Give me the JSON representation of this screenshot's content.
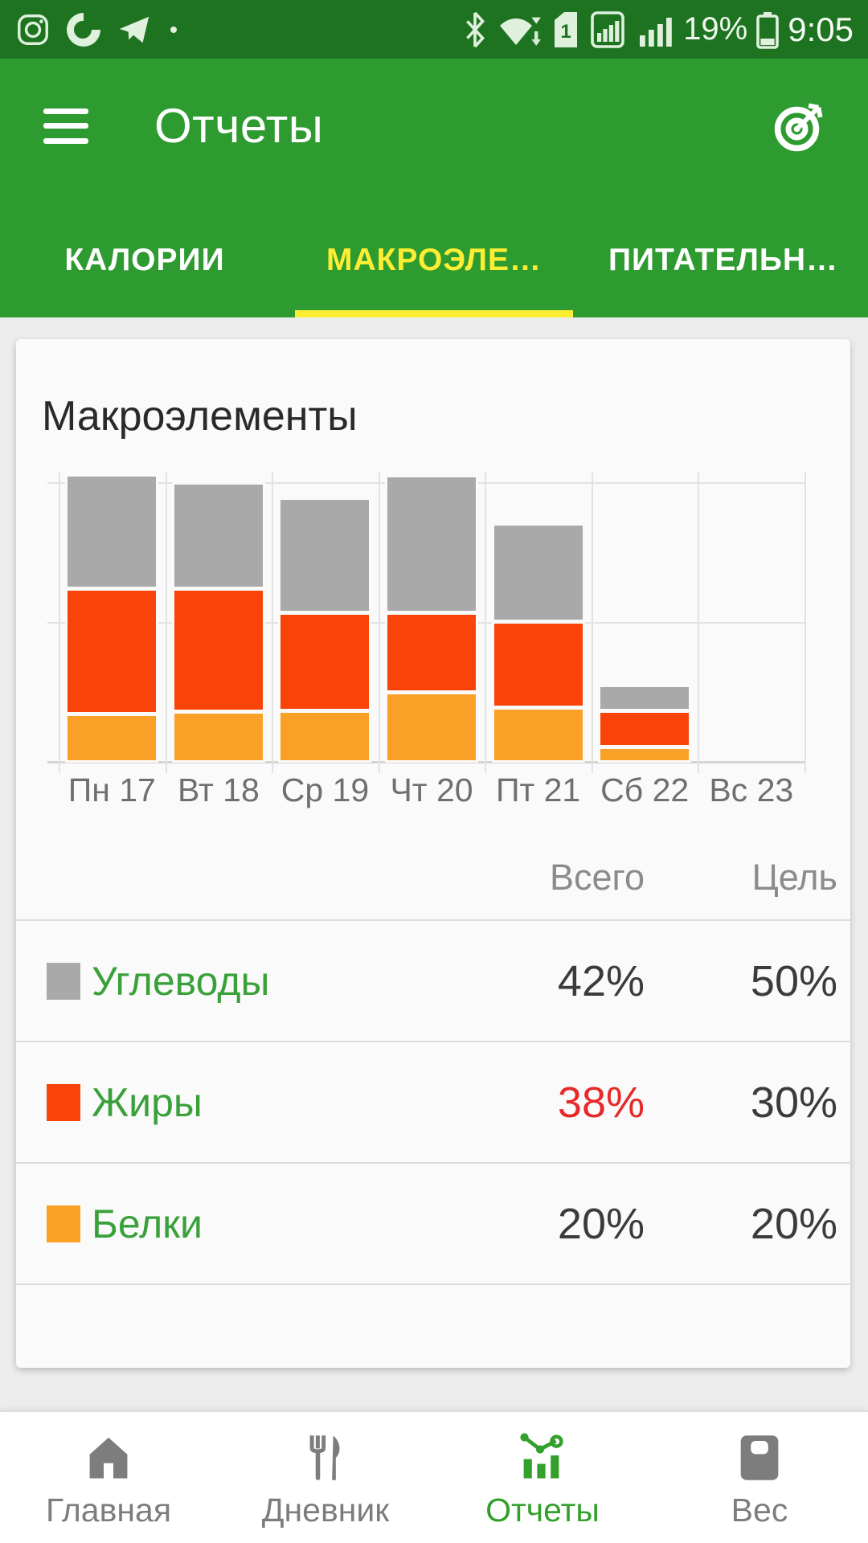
{
  "status_bar": {
    "time": "9:05",
    "battery_percent": "19%",
    "sim_slot": "1"
  },
  "app_bar": {
    "title": "Отчеты"
  },
  "tabs": {
    "items": [
      {
        "label": "КАЛОРИИ"
      },
      {
        "label": "МАКРОЭЛЕ…"
      },
      {
        "label": "ПИТАТЕЛЬН…"
      }
    ],
    "active_index": 1
  },
  "chart_data": {
    "type": "bar",
    "stacked": true,
    "title": "Макроэлементы",
    "xlabel": "",
    "ylabel": "",
    "ylim": [
      0,
      100
    ],
    "grid": true,
    "legend_position": "table-below",
    "categories": [
      "Пн 17",
      "Вт 18",
      "Ср 19",
      "Чт 20",
      "Пт 21",
      "Сб 22",
      "Вс 23"
    ],
    "series": [
      {
        "name": "Белки",
        "color": "#fba026",
        "values": [
          15.8,
          16.7,
          17.0,
          23.6,
          18.1,
          4.0,
          0
        ]
      },
      {
        "name": "Жиры",
        "color": "#fa4308",
        "values": [
          43.4,
          42.5,
          33.6,
          27.0,
          29.3,
          11.5,
          0
        ]
      },
      {
        "name": "Углеводы",
        "color": "#a9a9a9",
        "values": [
          39.4,
          36.5,
          39.7,
          47.7,
          33.6,
          7.8,
          0
        ]
      }
    ]
  },
  "table": {
    "header_total": "Всего",
    "header_goal": "Цель",
    "rows": [
      {
        "label": "Углеводы",
        "color": "#a9a9a9",
        "total": "42%",
        "goal": "50%",
        "total_color": "#3b3b3b"
      },
      {
        "label": "Жиры",
        "color": "#fa4308",
        "total": "38%",
        "goal": "30%",
        "total_color": "#e62a2a"
      },
      {
        "label": "Белки",
        "color": "#fba026",
        "total": "20%",
        "goal": "20%",
        "total_color": "#3b3b3b"
      }
    ]
  },
  "bottom_nav": {
    "items": [
      {
        "label": "Главная"
      },
      {
        "label": "Дневник"
      },
      {
        "label": "Отчеты"
      },
      {
        "label": "Вес"
      }
    ],
    "active_index": 2
  },
  "colors": {
    "statusbar_green": "#1d7320",
    "appbar_green": "#2e9b30",
    "tab_yellow": "#fdee33",
    "bg_gray": "#ededed",
    "card_bg": "#fafafa",
    "grid_color": "#e2e2e2",
    "divider": "#dcdcdc",
    "label_green": "#3aa03a",
    "warn_red": "#e62a2a",
    "nav_gray": "#7d7d7d",
    "nav_active_green": "#34a02c",
    "status_icon": "#dff0dd"
  }
}
